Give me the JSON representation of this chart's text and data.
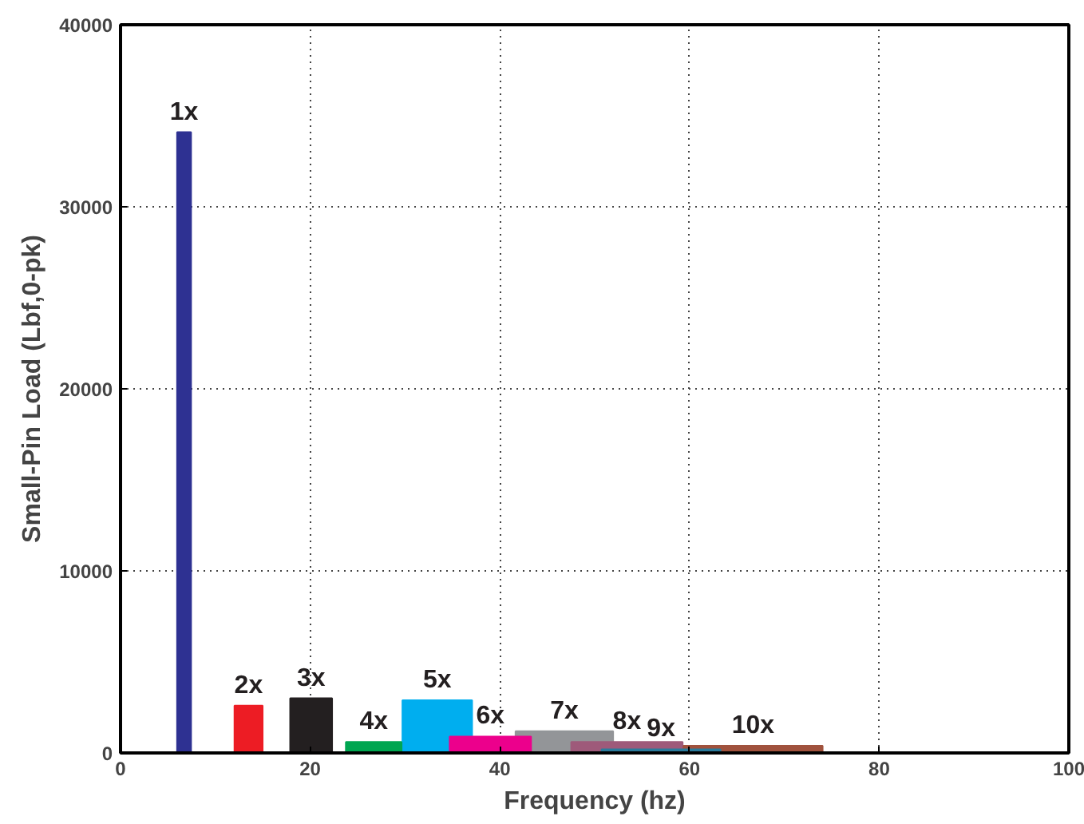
{
  "chart_data": {
    "type": "bar",
    "xlabel": "Frequency (hz)",
    "ylabel": "Small-Pin Load (Lbf,0-pk)",
    "x": [
      6.7,
      13.5,
      20.1,
      26.7,
      33.4,
      39.0,
      46.8,
      53.4,
      57.0,
      66.7
    ],
    "values": [
      34100,
      2600,
      3000,
      600,
      2900,
      900,
      1200,
      600,
      200,
      400
    ],
    "colors": [
      "#2e3192",
      "#ed1c24",
      "#231f20",
      "#00a651",
      "#00aeef",
      "#ec008c",
      "#939598",
      "#9e5a7a",
      "#2a7b9b",
      "#a0523d"
    ],
    "xlim": [
      0,
      100
    ],
    "xticks": [
      0,
      20,
      40,
      60,
      80,
      100
    ],
    "ylim": [
      0,
      40000
    ],
    "yticks": [
      0,
      10000,
      20000,
      30000,
      40000
    ],
    "grid": true,
    "annotations": [
      {
        "text": "1x",
        "x": 6.7,
        "y": 34100
      },
      {
        "text": "2x",
        "x": 13.5,
        "y": 2600
      },
      {
        "text": "3x",
        "x": 20.1,
        "y": 3000
      },
      {
        "text": "4x",
        "x": 26.7,
        "y": 600
      },
      {
        "text": "5x",
        "x": 33.4,
        "y": 2900
      },
      {
        "text": "6x",
        "x": 39.0,
        "y": 900
      },
      {
        "text": "7x",
        "x": 46.8,
        "y": 1200
      },
      {
        "text": "8x",
        "x": 53.4,
        "y": 600
      },
      {
        "text": "9x",
        "x": 57.0,
        "y": 200
      },
      {
        "text": "10x",
        "x": 66.7,
        "y": 400
      }
    ]
  }
}
